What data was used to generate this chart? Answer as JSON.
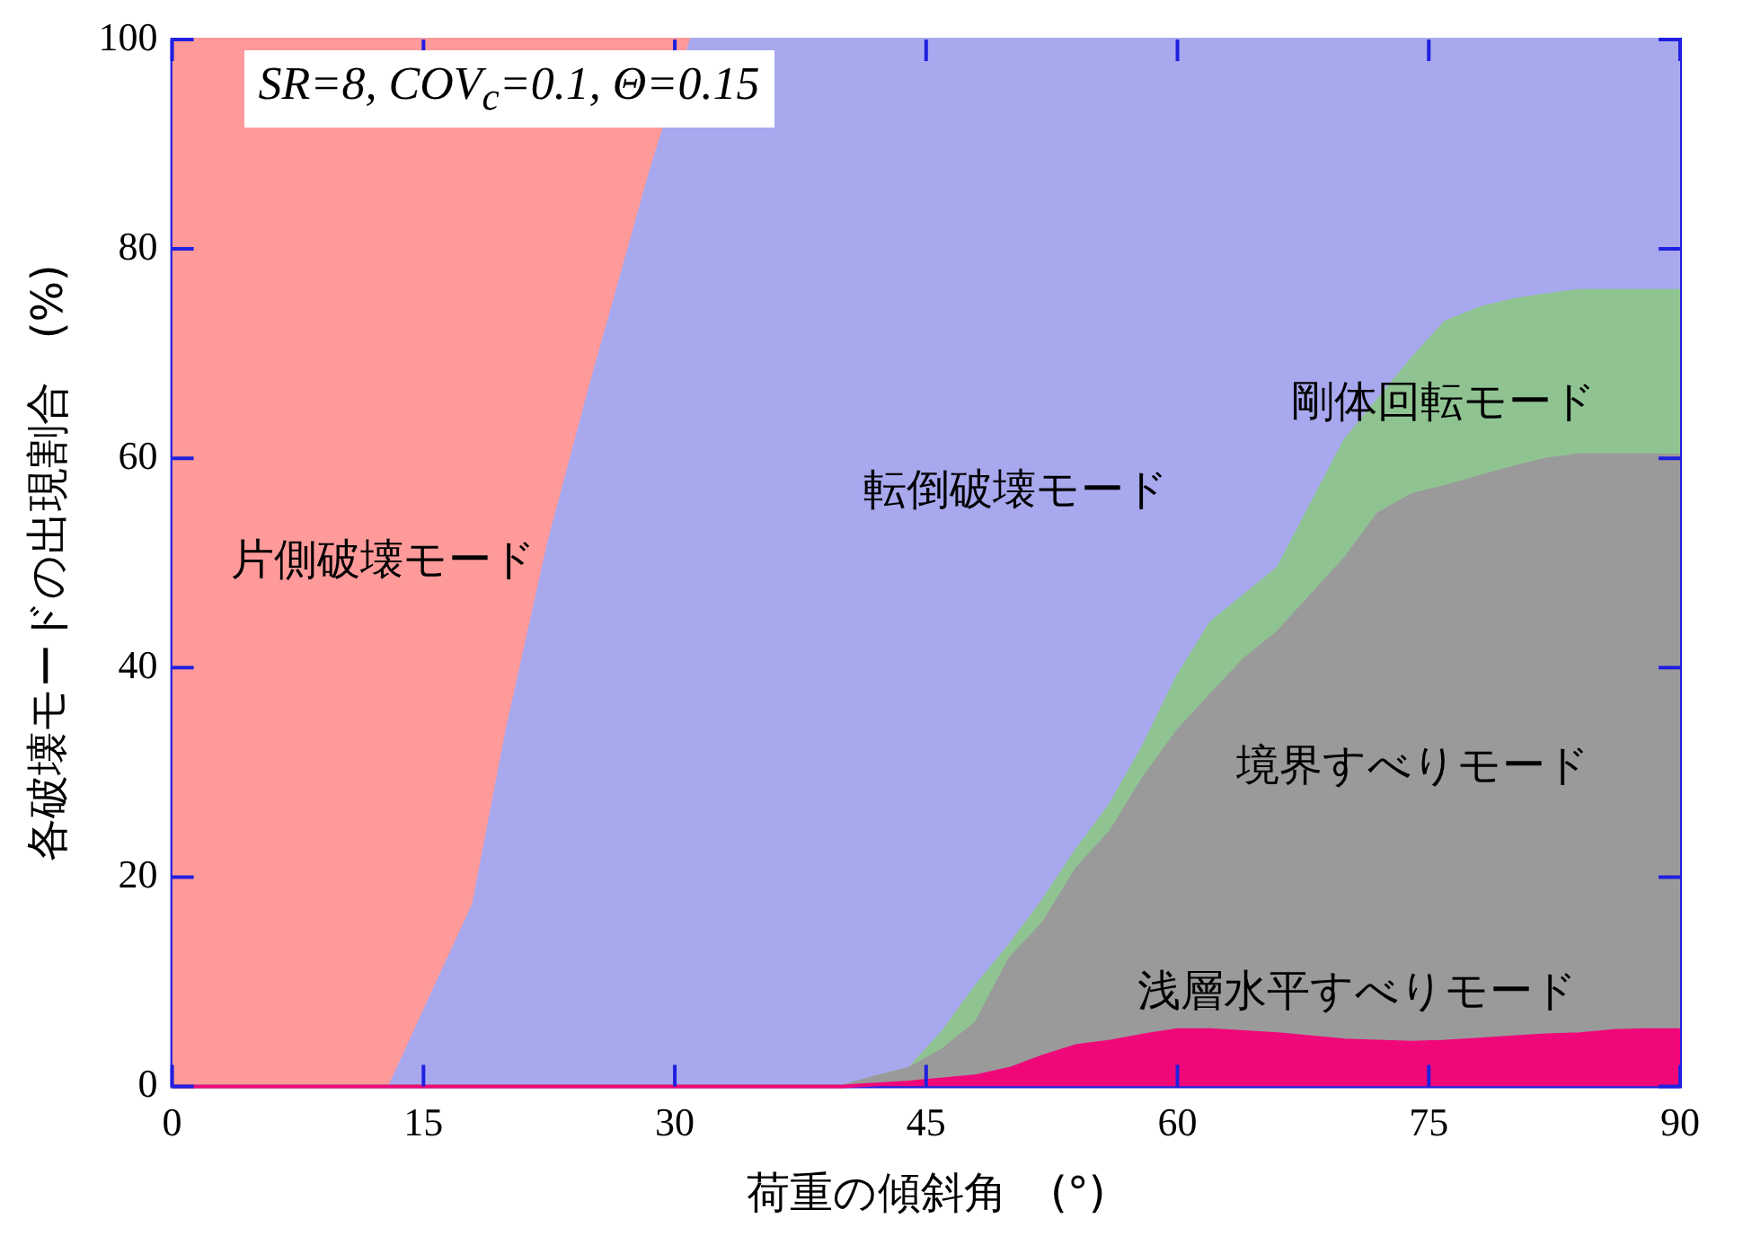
{
  "chart_data": {
    "type": "area",
    "stacked": true,
    "xlabel": "荷重の傾斜角　(°)",
    "ylabel": "各破壊モードの出現割合　(%)",
    "x": [
      0,
      5,
      10,
      13,
      15,
      18,
      20,
      22.5,
      25,
      28.5,
      31,
      35,
      40,
      42,
      44,
      46,
      48,
      50,
      52,
      54,
      56,
      58,
      60,
      62,
      64,
      66,
      68,
      70,
      72,
      74,
      76,
      78,
      80,
      82,
      84,
      86,
      88,
      90
    ],
    "series": [
      {
        "name": "浅層水平すべりモード",
        "color": "#f0087a",
        "values": [
          0,
          0,
          0,
          0,
          0,
          0,
          0,
          0,
          0,
          0,
          0,
          0,
          0,
          0.2,
          0.4,
          0.7,
          1,
          1.7,
          2.9,
          3.9,
          4.3,
          4.9,
          5.4,
          5.4,
          5.2,
          5,
          4.7,
          4.4,
          4.3,
          4.2,
          4.3,
          4.5,
          4.7,
          4.9,
          5,
          5.3,
          5.4,
          5.4
        ]
      },
      {
        "name": "境界すべりモード",
        "color": "#9a9a9a",
        "values": [
          0,
          0,
          0,
          0,
          0,
          0,
          0,
          0,
          0,
          0,
          0,
          0,
          0,
          0.7,
          1.3,
          2.8,
          5.1,
          10.5,
          12.7,
          16.9,
          20,
          24.6,
          28.5,
          32,
          35.6,
          38.4,
          42.2,
          46,
          50.4,
          52.3,
          53,
          53.7,
          54.4,
          55,
          55.3,
          55,
          54.9,
          54.9
        ]
      },
      {
        "name": "剛体回転モード",
        "color": "#8fc492",
        "values": [
          0,
          0,
          0,
          0,
          0,
          0,
          0,
          0,
          0,
          0,
          0,
          0,
          0,
          0,
          0,
          1.7,
          3.5,
          1.3,
          2.2,
          1.8,
          2.6,
          3.1,
          5.2,
          6.9,
          6.1,
          6.1,
          8.7,
          11.3,
          10.9,
          13,
          15.7,
          16.1,
          16,
          15.7,
          15.7,
          15.7,
          15.7,
          15.7
        ]
      },
      {
        "name": "転倒破壊モード",
        "color": "#a8a8ee",
        "values": [
          0,
          0,
          0,
          0,
          7,
          17.4,
          34,
          52,
          67,
          87,
          100,
          100,
          100,
          99.1,
          98.3,
          94.8,
          90.4,
          86.5,
          82.2,
          77.4,
          73.1,
          67.4,
          60.9,
          55.7,
          53.1,
          50.5,
          44.4,
          38.3,
          34.4,
          30.5,
          27,
          25.7,
          24.9,
          24.4,
          24,
          24,
          24,
          24
        ]
      },
      {
        "name": "片側破壊モード",
        "color": "#ff9a9a",
        "values": [
          100,
          100,
          100,
          100,
          93,
          82.6,
          66,
          48,
          33,
          13,
          0,
          null,
          null,
          null,
          null,
          null,
          null,
          null,
          null,
          null,
          null,
          null,
          null,
          null,
          null,
          null,
          null,
          null,
          null,
          null,
          null,
          null,
          null,
          null,
          null,
          null,
          null,
          null
        ]
      }
    ],
    "xlim": [
      0,
      90
    ],
    "xticks": [
      0,
      15,
      30,
      45,
      60,
      75,
      90
    ],
    "ylim": [
      0,
      100
    ],
    "yticks": [
      0,
      20,
      40,
      60,
      80,
      100
    ],
    "legend": false,
    "marker": "none",
    "annotations": [
      "SR=8, COV$_{c}$=0.1, Θ=0.15"
    ]
  }
}
